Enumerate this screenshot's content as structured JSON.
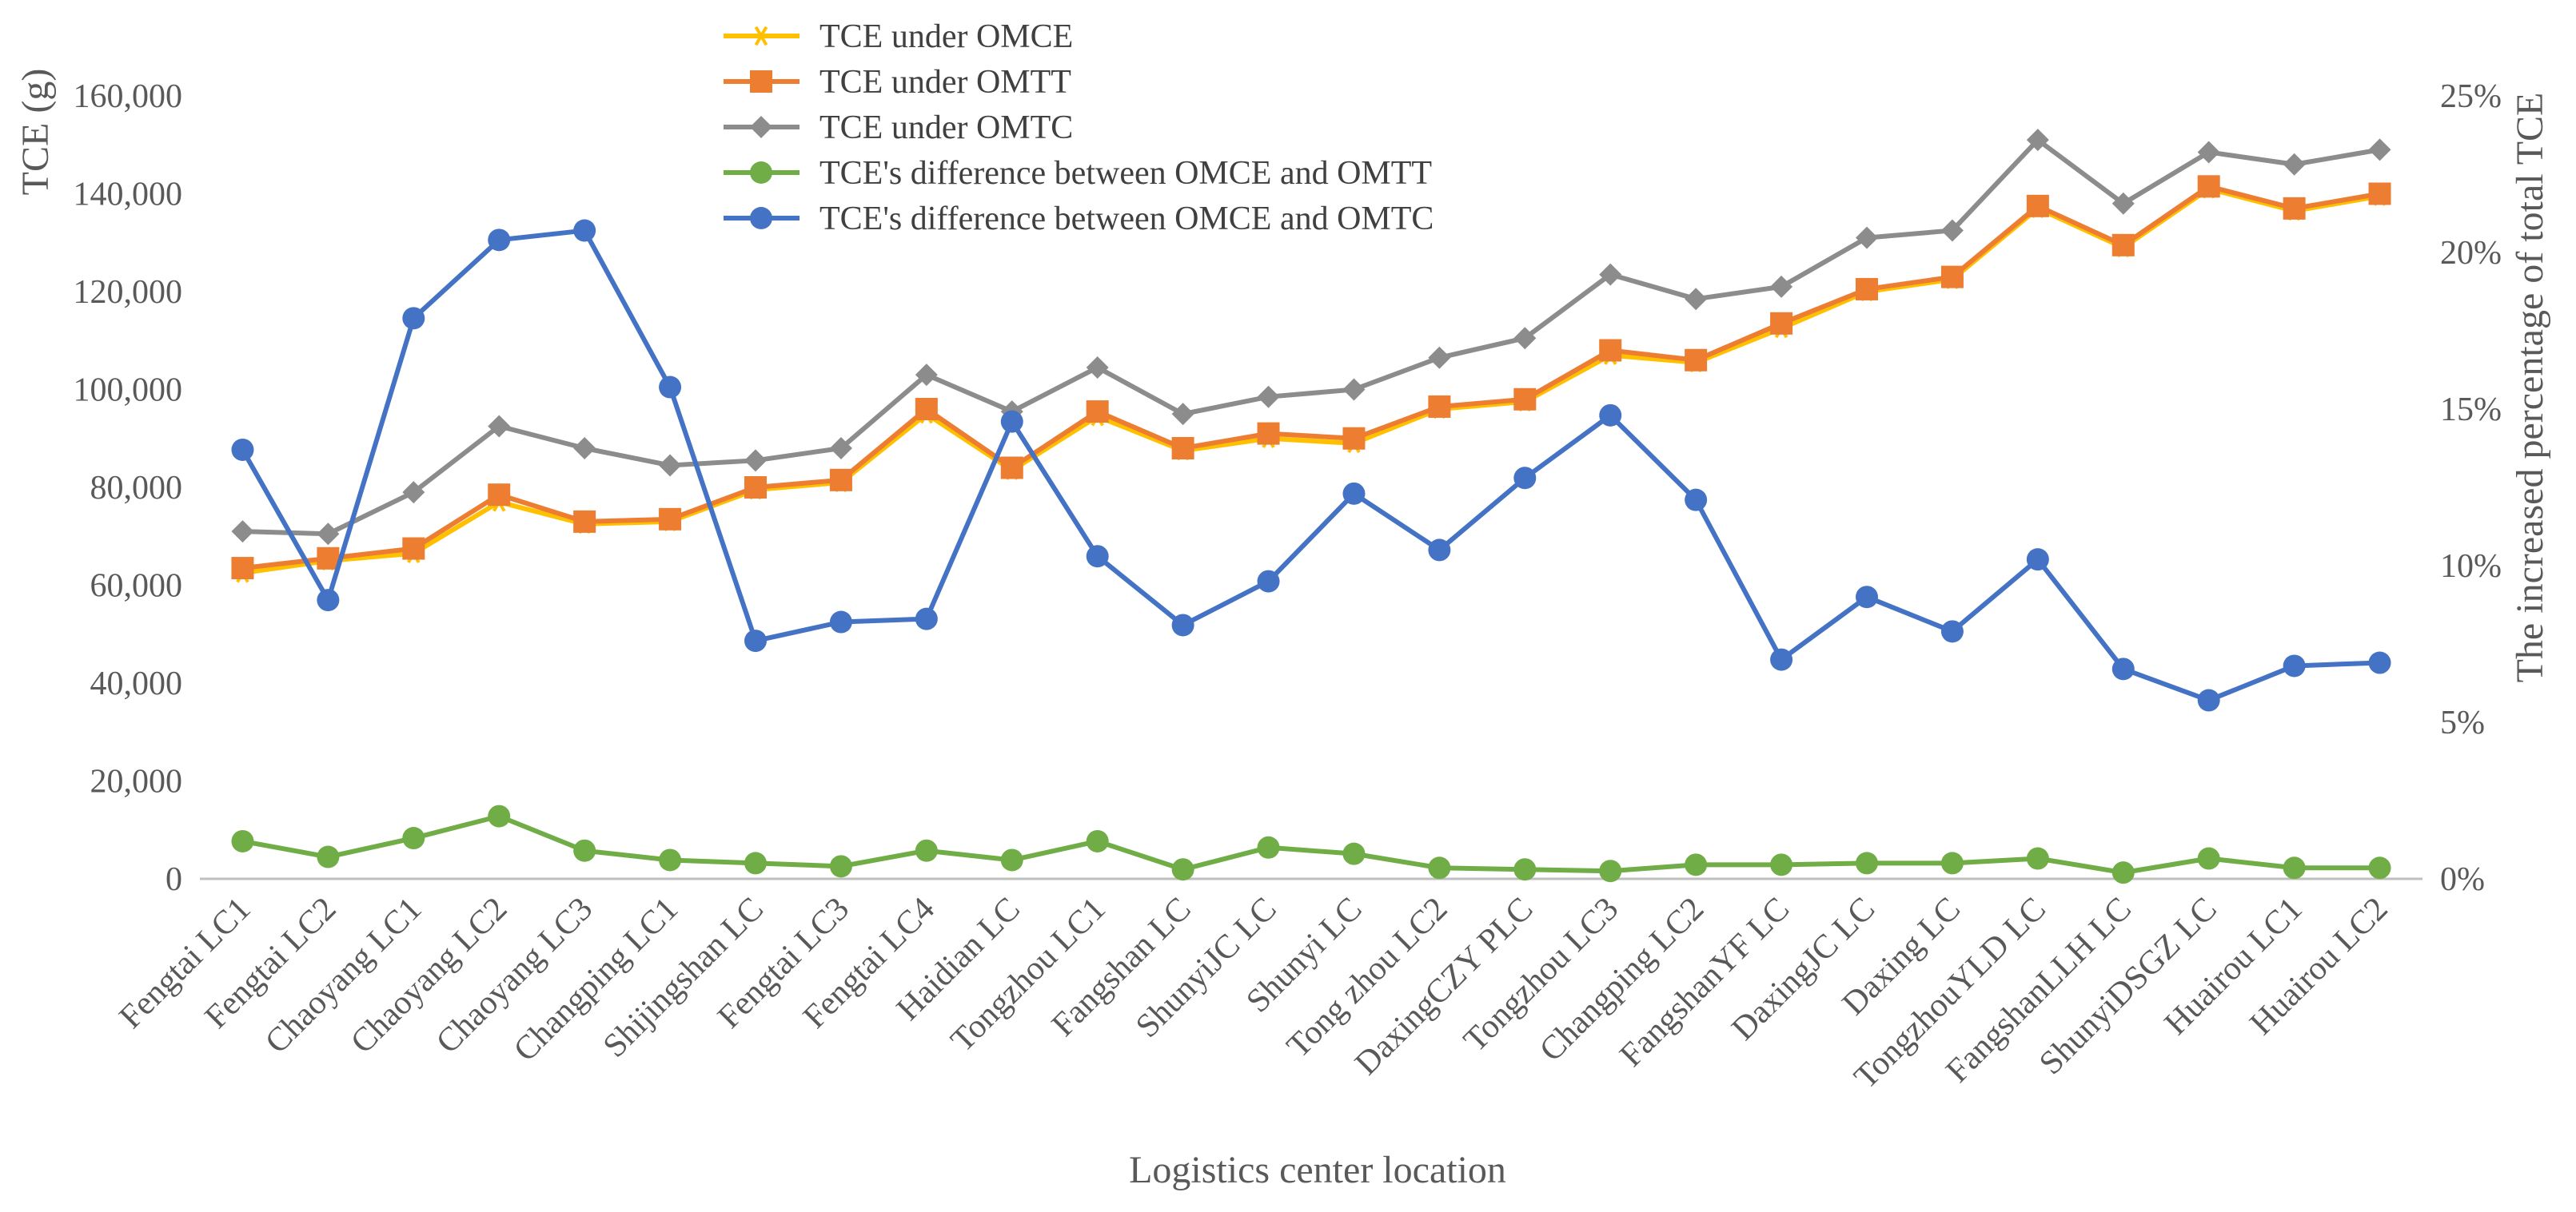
{
  "chart_data": {
    "type": "line",
    "xlabel": "Logistics center location",
    "ylabel": "TCE (g)",
    "y2label": "The increased percentage of total TCE",
    "ylim": [
      0,
      160000
    ],
    "y_ticks": [
      0,
      20000,
      40000,
      60000,
      80000,
      100000,
      120000,
      140000,
      160000
    ],
    "y_tick_labels": [
      "0",
      "20,000",
      "40,000",
      "60,000",
      "80,000",
      "100,000",
      "120,000",
      "140,000",
      "160,000"
    ],
    "y2lim": [
      0,
      25
    ],
    "y2_ticks": [
      0,
      5,
      10,
      15,
      20,
      25
    ],
    "y2_tick_labels": [
      "0%",
      "5%",
      "10%",
      "15%",
      "20%",
      "25%"
    ],
    "grid": false,
    "legend_position": "top-center",
    "categories": [
      "Fengtai LC1",
      "Fengtai LC2",
      "Chaoyang LC1",
      "Chaoyang LC2",
      "Chaoyang LC3",
      "Changping LC1",
      "Shijingshan LC",
      "Fengtai LC3",
      "Fengtai LC4",
      "Haidian LC",
      "Tongzhou LC1",
      "Fangshan LC",
      "ShunyiJC LC",
      "Shunyi LC",
      "Tong zhou LC2",
      "DaxingCZY PLC",
      "Tongzhou LC3",
      "Changping LC2",
      "FangshanYF LC",
      "DaxingJC LC",
      "Daxing LC",
      "TongzhouYLD LC",
      "FangshanLLH LC",
      "ShunyiDSGZ LC",
      "Huairou LC1",
      "Huairou LC2"
    ],
    "series": [
      {
        "name": "TCE under OMCE",
        "axis": "left",
        "color": "#FFC000",
        "marker": "asterisk",
        "values": [
          62500,
          65000,
          66500,
          77000,
          72500,
          73000,
          79500,
          81000,
          95000,
          83500,
          94500,
          87500,
          90000,
          89000,
          96000,
          97500,
          107000,
          105500,
          112500,
          120000,
          122500,
          137000,
          129000,
          141000,
          136500,
          139500
        ]
      },
      {
        "name": "TCE under OMTT",
        "axis": "left",
        "color": "#ED7D31",
        "marker": "square",
        "values": [
          63500,
          65500,
          67500,
          78500,
          73000,
          73500,
          80000,
          81500,
          96000,
          84000,
          95500,
          88000,
          91000,
          90000,
          96500,
          98000,
          108000,
          106000,
          113500,
          120500,
          123000,
          137500,
          129500,
          141500,
          137000,
          140000
        ]
      },
      {
        "name": "TCE under OMTC",
        "axis": "left",
        "color": "#8C8C8C",
        "marker": "diamond",
        "values": [
          71000,
          70500,
          79000,
          92500,
          88000,
          84500,
          85500,
          88000,
          103000,
          95500,
          104500,
          95000,
          98500,
          100000,
          106500,
          110500,
          123500,
          118500,
          121000,
          131000,
          132500,
          151000,
          138000,
          148500,
          146000,
          149000
        ]
      },
      {
        "name": "TCE's difference between OMCE and OMTT",
        "axis": "right",
        "color": "#70AD47",
        "marker": "circle",
        "values": [
          1.2,
          0.7,
          1.3,
          2.0,
          0.9,
          0.6,
          0.5,
          0.4,
          0.9,
          0.6,
          1.2,
          0.3,
          1.0,
          0.8,
          0.35,
          0.3,
          0.25,
          0.45,
          0.45,
          0.5,
          0.5,
          0.65,
          0.2,
          0.65,
          0.35,
          0.35
        ]
      },
      {
        "name": "TCE's difference between OMCE and OMTC",
        "axis": "right",
        "color": "#4472C4",
        "marker": "circle",
        "values": [
          13.7,
          8.9,
          17.9,
          20.4,
          20.7,
          15.7,
          7.6,
          8.2,
          8.3,
          14.6,
          10.3,
          8.1,
          9.5,
          12.3,
          10.5,
          12.8,
          14.8,
          12.1,
          7.0,
          9.0,
          7.9,
          10.2,
          6.7,
          5.7,
          6.8,
          6.9
        ]
      }
    ]
  }
}
